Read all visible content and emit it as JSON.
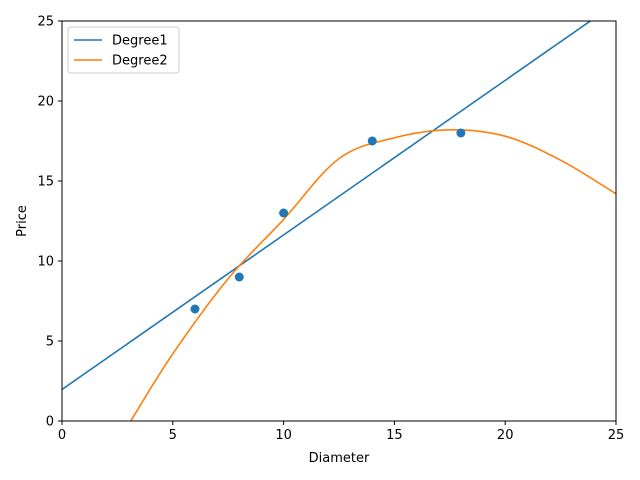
{
  "chart_data": {
    "type": "scatter",
    "title": "",
    "xlabel": "Diameter",
    "ylabel": "Price",
    "xlim": [
      0,
      25
    ],
    "ylim": [
      0,
      25
    ],
    "x_ticks": [
      "0",
      "5",
      "10",
      "15",
      "20",
      "25"
    ],
    "y_ticks": [
      "0",
      "5",
      "10",
      "15",
      "20",
      "25"
    ],
    "grid": false,
    "legend_position": "top-left",
    "points": {
      "color": "#1f77b4",
      "x": [
        6,
        8,
        10,
        14,
        18
      ],
      "y": [
        7,
        9,
        13,
        17.5,
        18
      ]
    },
    "series": [
      {
        "name": "Degree1",
        "color": "#1f77b4",
        "x": [
          0,
          25
        ],
        "y": [
          1.97,
          26.12
        ]
      },
      {
        "name": "Degree2",
        "color": "#ff7f0e",
        "x": [
          3.1,
          5,
          7.5,
          10,
          12.5,
          15,
          17.5,
          20,
          22.5,
          25
        ],
        "y": [
          0,
          4.2,
          8.9,
          12.6,
          16.4,
          17.7,
          18.2,
          17.8,
          16.3,
          14.2
        ]
      }
    ]
  }
}
